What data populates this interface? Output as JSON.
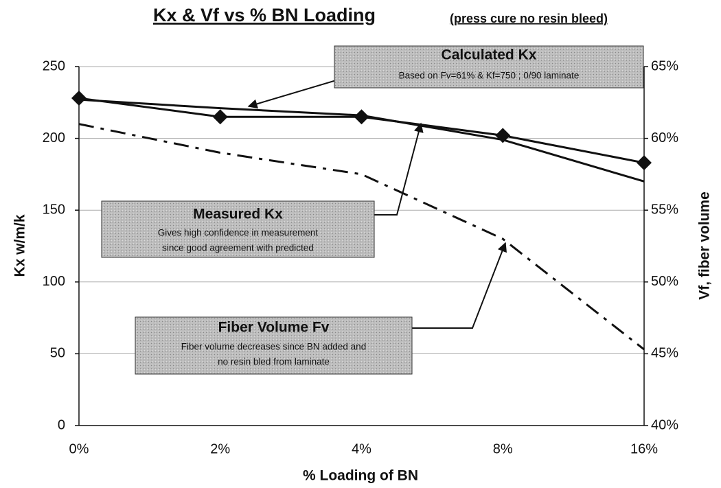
{
  "chart_data": {
    "type": "line",
    "title": "Kx & Vf vs % BN Loading",
    "subtitle": "(press cure no resin bleed)",
    "x_label": "% Loading of BN",
    "y_label": "Kx w/m/k",
    "y2_label": "Vf, fiber volume",
    "categories": [
      "0%",
      "2%",
      "4%",
      "8%",
      "16%"
    ],
    "ylim": [
      0,
      250
    ],
    "yticks": [
      0,
      50,
      100,
      150,
      200,
      250
    ],
    "y2lim": [
      40,
      65
    ],
    "y2ticks": [
      {
        "value": 40,
        "label": "40%"
      },
      {
        "value": 45,
        "label": "45%"
      },
      {
        "value": 50,
        "label": "50%"
      },
      {
        "value": 55,
        "label": "55%"
      },
      {
        "value": 60,
        "label": "60%"
      },
      {
        "value": 65,
        "label": "65%"
      }
    ],
    "grid": true,
    "series": [
      {
        "name": "Calculated Kx",
        "color": "#111111",
        "values": [
          227,
          221,
          216,
          199,
          170
        ],
        "annotation": [
          "Based on Fv=61% & Kf=750 ; 0/90 laminate"
        ]
      },
      {
        "name": "Measured Kx",
        "color": "#111111",
        "marker": "diamond",
        "values": [
          228,
          215,
          215,
          202,
          183
        ],
        "annotation": [
          "Gives high confidence in measurement",
          "since good agreement with predicted"
        ]
      },
      {
        "name": "Fiber Volume Fv",
        "color": "#111111",
        "axis": "y2",
        "dashed": true,
        "values": [
          61,
          59,
          57.5,
          53,
          45.3
        ],
        "annotation": [
          "Fiber volume decreases since BN added and",
          "no resin bled from laminate"
        ]
      }
    ]
  }
}
